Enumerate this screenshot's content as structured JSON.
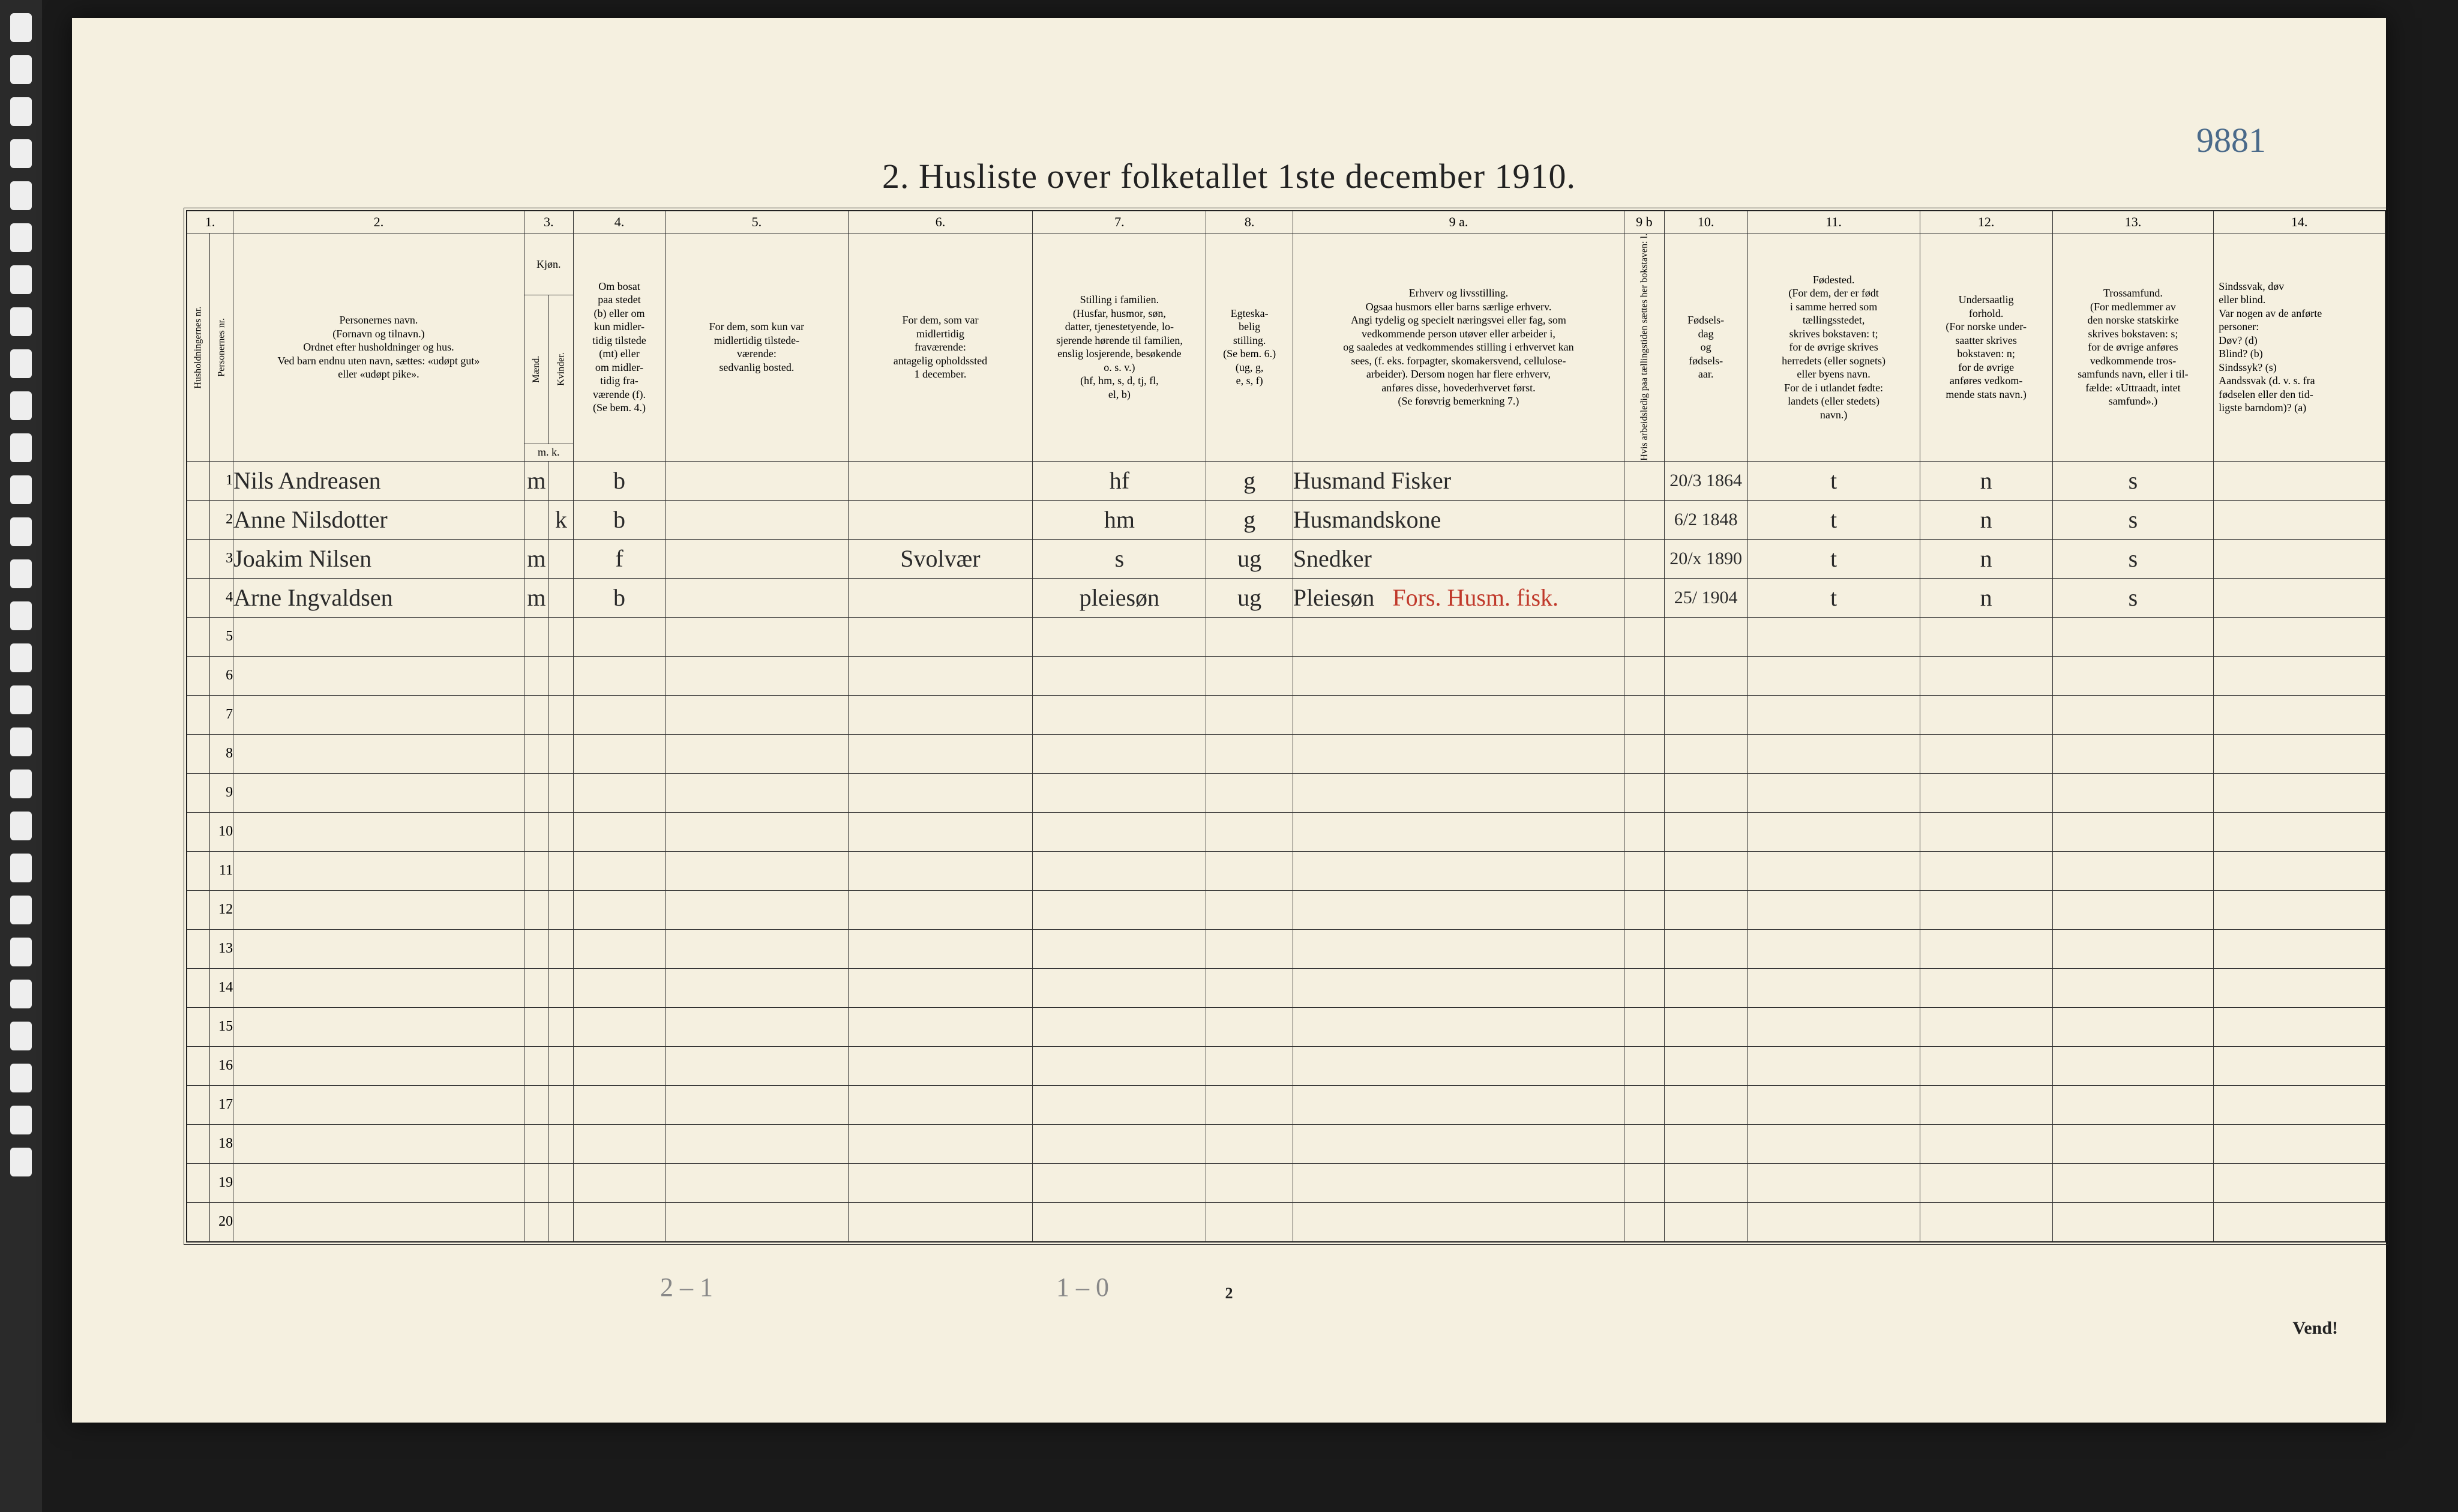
{
  "annotation": "9881",
  "title": "2.  Husliste over folketallet 1ste december 1910.",
  "col_numbers": [
    "1.",
    "2.",
    "3.",
    "4.",
    "5.",
    "6.",
    "7.",
    "8.",
    "9 a.",
    "9 b",
    "10.",
    "11.",
    "12.",
    "13.",
    "14."
  ],
  "headers": {
    "c1a": "Husholdningernes nr.",
    "c1b": "Personernes nr.",
    "c2": "Personernes navn.\n(Fornavn og tilnavn.)\nOrdnet efter husholdninger og hus.\nVed barn endnu uten navn, sættes: «udøpt gut»\neller «udøpt pike».",
    "c3t": "Kjøn.",
    "c3a": "Mænd.",
    "c3b": "Kvinder.",
    "c3f": "m.   k.",
    "c4": "Om bosat\npaa stedet\n(b) eller om\nkun midler-\ntidig tilstede\n(mt) eller\nom midler-\ntidig fra-\nværende (f).\n(Se bem. 4.)",
    "c5": "For dem, som kun var\nmidlertidig tilstede-\nværende:\nsedvanlig bosted.",
    "c6": "For dem, som var\nmidlertidig\nfraværende:\nantagelig opholdssted\n1 december.",
    "c7": "Stilling i familien.\n(Husfar, husmor, søn,\ndatter, tjenestetyende, lo-\nsjerende hørende til familien,\nenslig losjerende, besøkende\no. s. v.)\n(hf, hm, s, d, tj, fl,\nel, b)",
    "c8": "Egteska-\nbelig\nstilling.\n(Se bem. 6.)\n(ug, g,\ne, s, f)",
    "c9a": "Erhverv og livsstilling.\nOgsaa husmors eller barns særlige erhverv.\nAngi tydelig og specielt næringsvei eller fag, som\nvedkommende person utøver eller arbeider i,\nog saaledes at vedkommendes stilling i erhvervet kan\nsees, (f. eks. forpagter, skomakersvend, cellulose-\narbeider). Dersom nogen har flere erhverv,\nanføres disse, hovederhvervet først.\n(Se forøvrig bemerkning 7.)",
    "c9b": "Hvis arbeidsledig\npaa tællingstiden sættes\nher bokstaven: l.",
    "c10": "Fødsels-\ndag\nog\nfødsels-\naar.",
    "c11": "Fødested.\n(For dem, der er født\ni samme herred som\ntællingsstedet,\nskrives bokstaven: t;\nfor de øvrige skrives\nherredets (eller sognets)\neller byens navn.\nFor de i utlandet fødte:\nlandets (eller stedets)\nnavn.)",
    "c12": "Undersaatlig\nforhold.\n(For norske under-\nsaatter skrives\nbokstaven: n;\nfor de øvrige\nanføres vedkom-\nmende stats navn.)",
    "c13": "Trossamfund.\n(For medlemmer av\nden norske statskirke\nskrives bokstaven: s;\nfor de øvrige anføres\nvedkommende tros-\nsamfunds navn, eller i til-\nfælde: «Uttraadt, intet\nsamfund».)",
    "c14": "Sindssvak, døv\neller blind.\nVar nogen av de anførte\npersoner:\nDøv?        (d)\nBlind?      (b)\nSindssyk?  (s)\nAandssvak (d. v. s. fra\nfødselen eller den tid-\nligste barndom)?  (a)"
  },
  "rows": [
    {
      "n": "1",
      "name": "Nils Andreasen",
      "sex": "m",
      "res": "b",
      "c5": "",
      "c6": "",
      "fam": "hf",
      "mar": "g",
      "occ": "Husmand Fisker",
      "dob": "20/3 1864",
      "bp": "t",
      "nat": "n",
      "rel": "s",
      "dis": ""
    },
    {
      "n": "2",
      "name": "Anne Nilsdotter",
      "sex": "k",
      "res": "b",
      "c5": "",
      "c6": "",
      "fam": "hm",
      "mar": "g",
      "occ": "Husmandskone",
      "dob": "6/2 1848",
      "bp": "t",
      "nat": "n",
      "rel": "s",
      "dis": ""
    },
    {
      "n": "3",
      "name": "Joakim Nilsen",
      "sex": "m",
      "res": "f",
      "c5": "",
      "c6": "Svolvær",
      "fam": "s",
      "mar": "ug",
      "occ": "Snedker",
      "dob": "20/x 1890",
      "bp": "t",
      "nat": "n",
      "rel": "s",
      "dis": ""
    },
    {
      "n": "4",
      "name": "Arne Ingvaldsen",
      "sex": "m",
      "res": "b",
      "c5": "",
      "c6": "",
      "fam": "pleiesøn",
      "mar": "ug",
      "occ": "Pleiesøn",
      "occ_red": "Fors. Husm. fisk.",
      "dob": "25/ 1904",
      "bp": "t",
      "nat": "n",
      "rel": "s",
      "dis": ""
    }
  ],
  "blank_rows": [
    "5",
    "6",
    "7",
    "8",
    "9",
    "10",
    "11",
    "12",
    "13",
    "14",
    "15",
    "16",
    "17",
    "18",
    "19",
    "20"
  ],
  "footer": {
    "left": "2 – 1",
    "mid": "1 – 0",
    "page": "2",
    "vend": "Vend!"
  },
  "widths": {
    "c1a": 40,
    "c1b": 40,
    "c2": 500,
    "c3a": 42,
    "c3b": 42,
    "c4": 160,
    "c5": 320,
    "c6": 320,
    "c7": 300,
    "c8": 150,
    "c9a": 560,
    "c9b": 70,
    "c10": 140,
    "c11": 300,
    "c12": 230,
    "c13": 280,
    "c14": 300
  },
  "colors": {
    "paper": "#f5f0e0",
    "ink": "#222",
    "rule": "#333",
    "red": "#c0392b",
    "pencil": "#888",
    "annot": "#4a6a8a"
  }
}
